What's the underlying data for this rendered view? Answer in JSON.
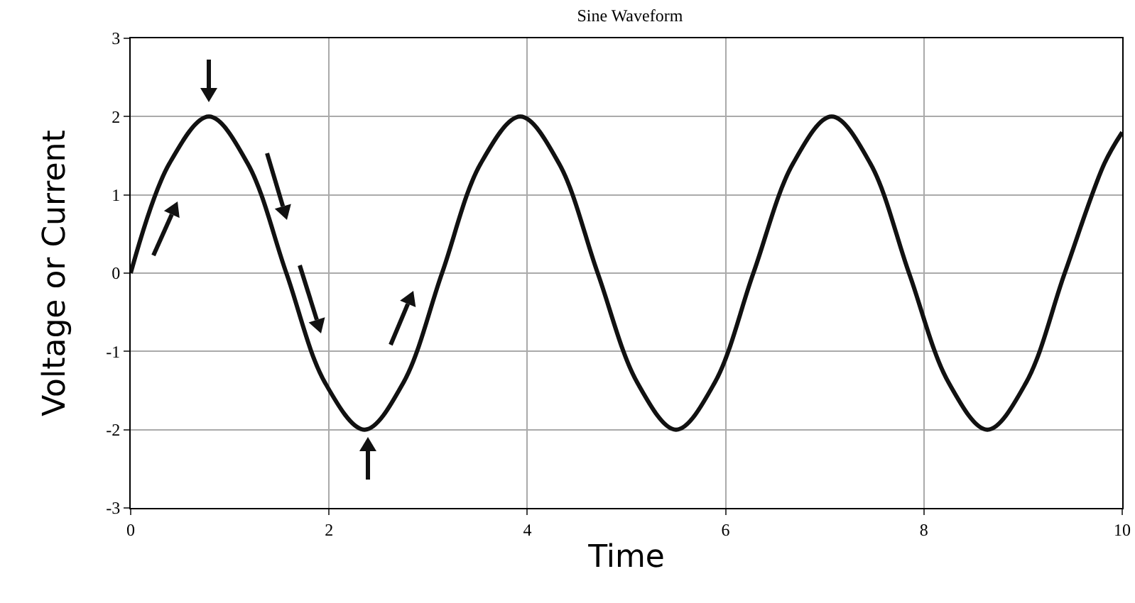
{
  "chart_data": {
    "type": "line",
    "title": "Sine Waveform",
    "xlabel": "Time",
    "ylabel": "Voltage or Current",
    "x": [
      0,
      0.39,
      0.79,
      1.18,
      1.57,
      1.96,
      2.36,
      2.75,
      3.14,
      3.53,
      3.93,
      4.32,
      4.71,
      5.11,
      5.5,
      5.89,
      6.28,
      6.68,
      7.07,
      7.46,
      7.85,
      8.25,
      8.64,
      9.03,
      9.42,
      9.82,
      10
    ],
    "series": [
      {
        "color": "#111111",
        "values": [
          0,
          1.4,
          2,
          1.4,
          0,
          -1.4,
          -2,
          -1.4,
          0,
          1.4,
          2,
          1.4,
          0,
          -1.4,
          -2,
          -1.4,
          0,
          1.4,
          2,
          1.4,
          0,
          -1.4,
          -2,
          -1.4,
          0,
          1.4,
          1.8
        ]
      }
    ],
    "xlim": [
      0,
      10
    ],
    "xticks": [
      0,
      2,
      4,
      6,
      8,
      10
    ],
    "ylim": [
      -3,
      3
    ],
    "yticks": [
      -3,
      -2,
      -1,
      0,
      1,
      2,
      3
    ],
    "grid": true,
    "marker": "none",
    "line_style": "solid"
  }
}
